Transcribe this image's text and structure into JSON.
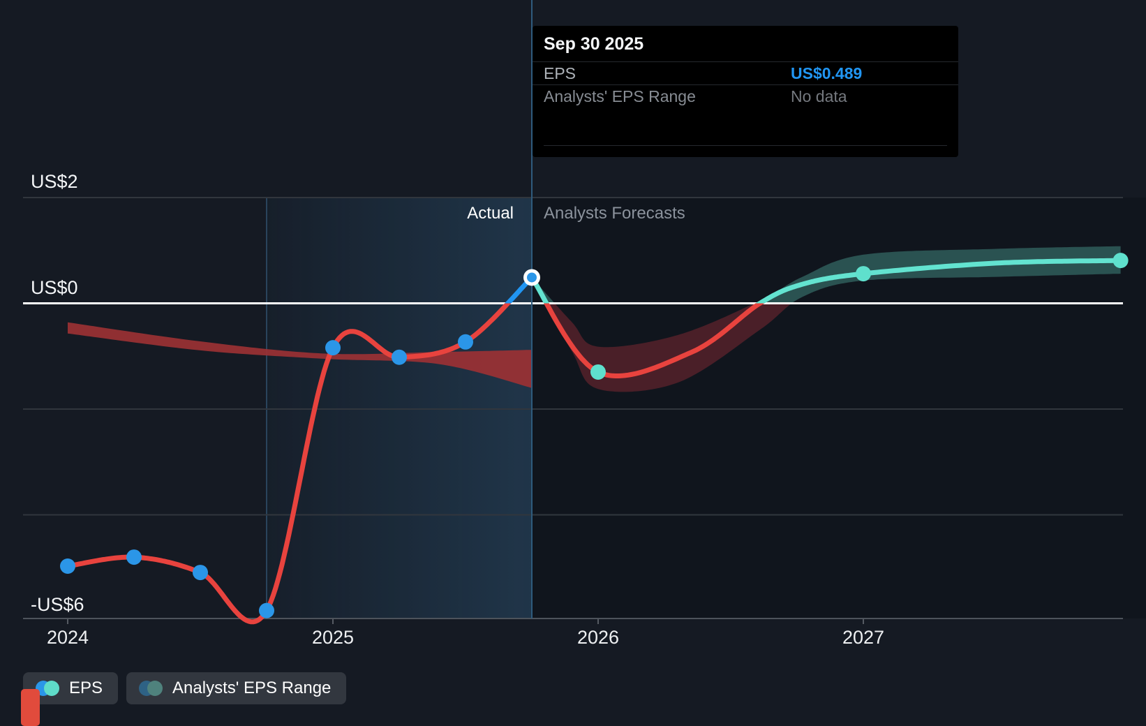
{
  "tooltip": {
    "title": "Sep 30 2025",
    "rows": [
      {
        "label": "EPS",
        "value": "US$0.489"
      },
      {
        "label": "Analysts' EPS Range",
        "value": "No data"
      }
    ]
  },
  "region_labels": {
    "actual": "Actual",
    "forecasts": "Analysts Forecasts"
  },
  "legend": [
    {
      "label": "EPS",
      "dot_colors": [
        "#2b96e8",
        "#5fdcc9"
      ]
    },
    {
      "label": "Analysts' EPS Range",
      "dot_colors": [
        "#2e6285",
        "#4f827d"
      ]
    }
  ],
  "colors": {
    "line_below_zero": "#e8433e",
    "line_actual_above_zero": "#2196f3",
    "line_forecast_above_zero": "#63e3d0",
    "dot_actual": "#2b96e8",
    "dot_forecast": "#5fe0cd",
    "band_past": "#9b3134",
    "band_forecast_below": "#aa2f3a",
    "band_forecast_above": "#4fa89b",
    "zero_line": "#ffffff",
    "gridline": "#31363d",
    "axis_line": "#4d535b",
    "tick": "#565b63",
    "divider": "#2f5b7d",
    "value_accent": "#2196f3"
  },
  "chart_data": {
    "type": "line",
    "title": "EPS actual vs analysts forecast",
    "x_unit": "year",
    "y_unit": "US$ per share",
    "y_axis_labels": [
      {
        "text": "US$2",
        "value": 2
      },
      {
        "text": "US$0",
        "value": 0
      },
      {
        "text": "-US$6",
        "value": -6
      }
    ],
    "gridline_values": [
      2,
      -2,
      -4
    ],
    "x_ticks": [
      {
        "label": "2024",
        "t": 2024
      },
      {
        "label": "2025",
        "t": 2025
      },
      {
        "label": "2026",
        "t": 2026
      },
      {
        "label": "2027",
        "t": 2027
      }
    ],
    "divider_t": 2025.75,
    "highlight_range": [
      2024.75,
      2025.75
    ],
    "hovered_point": {
      "date": "Sep 30 2025",
      "t": 2025.75,
      "value": 0.489
    },
    "series": [
      {
        "name": "EPS (actual)",
        "points": [
          {
            "t": 2024.0,
            "v": -4.97
          },
          {
            "t": 2024.25,
            "v": -4.8
          },
          {
            "t": 2024.5,
            "v": -5.09
          },
          {
            "t": 2024.75,
            "v": -5.81
          },
          {
            "t": 2025.0,
            "v": -0.84
          },
          {
            "t": 2025.25,
            "v": -1.02
          },
          {
            "t": 2025.5,
            "v": -0.73
          },
          {
            "t": 2025.75,
            "v": 0.489
          }
        ]
      },
      {
        "name": "EPS (analysts forecast)",
        "points": [
          {
            "t": 2025.75,
            "v": 0.489
          },
          {
            "t": 2026.0,
            "v": -1.3
          },
          {
            "t": 2027.0,
            "v": 0.56
          },
          {
            "t": 2027.97,
            "v": 0.81
          }
        ],
        "curve": [
          {
            "t": 2025.75,
            "v": 0.489
          },
          {
            "t": 2026.0,
            "v": -1.3
          },
          {
            "t": 2026.35,
            "v": -0.93
          },
          {
            "t": 2026.61,
            "v": 0.0
          },
          {
            "t": 2026.77,
            "v": 0.36
          },
          {
            "t": 2027.0,
            "v": 0.56
          },
          {
            "t": 2027.5,
            "v": 0.76
          },
          {
            "t": 2027.97,
            "v": 0.81
          }
        ]
      }
    ],
    "past_range_band": [
      {
        "t": 2024.0,
        "hi": -0.36,
        "lo": -0.57
      },
      {
        "t": 2024.5,
        "hi": -0.72,
        "lo": -0.89
      },
      {
        "t": 2024.97,
        "hi": -0.95,
        "lo": -1.05
      },
      {
        "t": 2025.4,
        "hi": -0.92,
        "lo": -1.15
      },
      {
        "t": 2025.75,
        "hi": -0.88,
        "lo": -1.6
      }
    ],
    "forecast_range_band": [
      {
        "t": 2025.75,
        "hi": 0.489,
        "lo": 0.489
      },
      {
        "t": 2025.9,
        "hi": -0.35,
        "lo": -0.9
      },
      {
        "t": 2026.0,
        "hi": -0.82,
        "lo": -1.62
      },
      {
        "t": 2026.3,
        "hi": -0.6,
        "lo": -1.5
      },
      {
        "t": 2026.61,
        "hi": 0.05,
        "lo": -0.5
      },
      {
        "t": 2026.77,
        "hi": 0.5,
        "lo": 0.12
      },
      {
        "t": 2027.0,
        "hi": 0.92,
        "lo": 0.43
      },
      {
        "t": 2027.5,
        "hi": 1.03,
        "lo": 0.5
      },
      {
        "t": 2027.97,
        "hi": 1.08,
        "lo": 0.56
      }
    ]
  }
}
